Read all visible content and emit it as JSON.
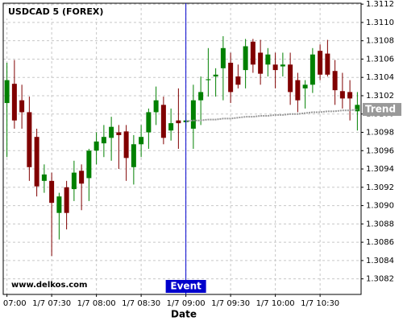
{
  "chart_data": {
    "type": "candlestick",
    "title": "USDCAD 5 (FOREX)",
    "watermark": "www.delkos.com",
    "x_label": "Date",
    "categories": [
      "1/7 07:00",
      null,
      null,
      null,
      null,
      null,
      "1/7 07:30",
      null,
      null,
      null,
      null,
      null,
      "1/7 08:00",
      null,
      null,
      null,
      null,
      null,
      "1/7 08:30",
      null,
      null,
      null,
      null,
      null,
      "1/7 09:00",
      null,
      null,
      null,
      null,
      null,
      "1/7 09:30",
      null,
      null,
      null,
      null,
      null,
      "1/7 10:00",
      null,
      null,
      null,
      null,
      null,
      "1/7 10:30",
      null,
      null,
      null,
      null,
      null
    ],
    "open": [
      1.31012,
      1.31033,
      1.31015,
      1.31002,
      1.30975,
      1.30927,
      1.30927,
      1.30892,
      1.3092,
      1.30918,
      1.30938,
      1.3093,
      1.3096,
      1.30968,
      1.30974,
      1.3098,
      1.30981,
      1.30942,
      1.30967,
      1.3098,
      1.31002,
      1.3101,
      1.30982,
      1.30993,
      1.30991,
      1.30984,
      1.31015,
      1.31037,
      1.31041,
      1.3105,
      1.31056,
      1.31041,
      1.31048,
      1.31079,
      1.31067,
      1.31054,
      1.31054,
      1.31052,
      1.31054,
      1.31037,
      1.31028,
      1.31032,
      1.31069,
      1.31066,
      1.31047,
      1.31025,
      1.31024,
      1.31003
    ],
    "high": [
      1.31056,
      1.31059,
      1.31032,
      1.31019,
      1.30984,
      1.30945,
      1.30936,
      1.30914,
      1.30927,
      1.30949,
      1.30945,
      1.30962,
      1.3098,
      1.30988,
      1.30997,
      1.30988,
      1.30988,
      1.30977,
      1.30988,
      1.31006,
      1.3103,
      1.31019,
      1.31006,
      1.31028,
      1.31002,
      1.31032,
      1.31041,
      1.31072,
      1.3105,
      1.31085,
      1.31067,
      1.31054,
      1.31082,
      1.31082,
      1.31081,
      1.31072,
      1.31067,
      1.31067,
      1.31067,
      1.31045,
      1.31037,
      1.31072,
      1.31076,
      1.31081,
      1.31059,
      1.31045,
      1.31037,
      1.31024
    ],
    "low": [
      1.30953,
      1.30984,
      1.30984,
      1.30927,
      1.3091,
      1.30914,
      1.30845,
      1.30863,
      1.30874,
      1.30905,
      1.30895,
      1.30905,
      1.30945,
      1.30953,
      1.30949,
      1.3094,
      1.30927,
      1.30923,
      1.30953,
      1.30962,
      1.30988,
      1.30967,
      1.30971,
      1.30962,
      1.30984,
      1.30962,
      1.30988,
      1.31019,
      1.31019,
      1.31015,
      1.31012,
      1.31028,
      1.31028,
      1.31045,
      1.31032,
      1.31041,
      1.31028,
      1.31041,
      1.3101,
      1.31002,
      1.31006,
      1.31023,
      1.31037,
      1.31041,
      1.3101,
      1.31006,
      1.30993,
      1.30982
    ],
    "close": [
      1.31037,
      1.30993,
      1.31002,
      1.30942,
      1.30921,
      1.30934,
      1.30903,
      1.3091,
      1.30892,
      1.30936,
      1.30924,
      1.3096,
      1.3097,
      1.30975,
      1.30986,
      1.30977,
      1.30952,
      1.30967,
      1.30975,
      1.31002,
      1.31015,
      1.30974,
      1.3099,
      1.3099,
      1.30993,
      1.31015,
      1.31024,
      1.31038,
      1.31043,
      1.31072,
      1.31024,
      1.31032,
      1.31074,
      1.31054,
      1.31044,
      1.31065,
      1.31048,
      1.31054,
      1.31024,
      1.31015,
      1.31032,
      1.31065,
      1.31043,
      1.31043,
      1.31026,
      1.31017,
      1.31017,
      1.3101
    ],
    "up_color": "#008000",
    "down_color": "#800000",
    "trend": {
      "name": "Trend",
      "color": "#999999",
      "values": [
        null,
        null,
        null,
        null,
        null,
        null,
        null,
        null,
        null,
        null,
        null,
        null,
        null,
        null,
        null,
        null,
        null,
        null,
        null,
        null,
        null,
        null,
        null,
        null,
        1.30992,
        1.30993,
        1.30993,
        1.30994,
        1.30994,
        1.30995,
        1.30995,
        1.30996,
        1.30997,
        1.30997,
        1.30998,
        1.30998,
        1.30999,
        1.30999,
        1.31,
        1.31,
        1.31001,
        1.31002,
        1.31002,
        1.31003,
        1.31003,
        1.31004,
        1.31004,
        1.31005
      ]
    },
    "event": {
      "label": "Event",
      "x": "1/7 09:00",
      "color": "#0000cc"
    },
    "ylim": [
      1.30803,
      1.31121
    ],
    "yticks": [
      1.3082,
      1.3084,
      1.3086,
      1.3088,
      {
        "value": 1.309,
        "label": "1.3090"
      },
      1.3092,
      1.3094,
      1.3096,
      1.3098,
      {
        "value": 1.31,
        "label": "1.3100"
      },
      1.3102,
      1.3104,
      1.3106,
      1.3108,
      {
        "value": 1.311,
        "label": "1.3110"
      },
      1.3112
    ],
    "grid": true
  }
}
